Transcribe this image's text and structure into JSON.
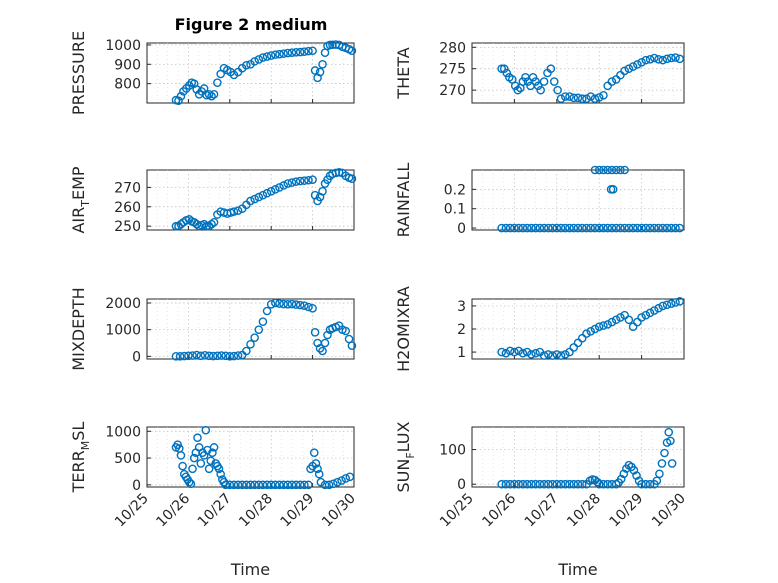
{
  "figure_title": "Figure 2 medium",
  "chart_data": [
    {
      "type": "scatter",
      "ylabel": "PRESSURE",
      "xlabel": "",
      "ylim": [
        700,
        1010
      ],
      "yticks": [
        800,
        900,
        1000
      ],
      "xlim": [
        0,
        5
      ],
      "xticks": [
        0,
        1,
        2,
        3,
        4,
        5
      ],
      "xticklabels": [
        "10/25",
        "10/26",
        "10/27",
        "10/28",
        "10/29",
        "10/30"
      ],
      "show_xticklabels": false,
      "grid": true,
      "series": [
        {
          "color": "#0072BD",
          "x": [
            0.7,
            0.76,
            0.82,
            0.88,
            0.95,
            1.02,
            1.08,
            1.14,
            1.2,
            1.26,
            1.32,
            1.38,
            1.44,
            1.5,
            1.56,
            1.62,
            1.7,
            1.78,
            1.86,
            1.94,
            2.02,
            2.1,
            2.2,
            2.3,
            2.4,
            2.5,
            2.6,
            2.7,
            2.8,
            2.9,
            3.0,
            3.1,
            3.2,
            3.3,
            3.4,
            3.5,
            3.6,
            3.7,
            3.8,
            3.9,
            4.0,
            4.06,
            4.12,
            4.18,
            4.24,
            4.3,
            4.36,
            4.42,
            4.48,
            4.56,
            4.64,
            4.72,
            4.8,
            4.88,
            4.95
          ],
          "y": [
            715,
            712,
            735,
            760,
            775,
            790,
            805,
            800,
            770,
            745,
            760,
            775,
            740,
            745,
            735,
            745,
            805,
            850,
            880,
            870,
            860,
            845,
            860,
            880,
            895,
            900,
            915,
            925,
            935,
            940,
            945,
            950,
            952,
            955,
            958,
            960,
            962,
            963,
            965,
            968,
            970,
            868,
            830,
            860,
            900,
            960,
            995,
            1000,
            1001,
            1002,
            1000,
            990,
            985,
            978,
            970
          ]
        }
      ]
    },
    {
      "type": "scatter",
      "ylabel": "THETA",
      "xlabel": "",
      "ylim": [
        267,
        281
      ],
      "yticks": [
        270,
        275,
        280
      ],
      "xlim": [
        0,
        5
      ],
      "xticks": [
        0,
        1,
        2,
        3,
        4,
        5
      ],
      "xticklabels": [
        "10/25",
        "10/26",
        "10/27",
        "10/28",
        "10/29",
        "10/30"
      ],
      "show_xticklabels": false,
      "grid": true,
      "series": [
        {
          "color": "#0072BD",
          "x": [
            0.7,
            0.76,
            0.82,
            0.88,
            0.95,
            1.02,
            1.08,
            1.14,
            1.2,
            1.26,
            1.32,
            1.38,
            1.44,
            1.5,
            1.56,
            1.62,
            1.7,
            1.78,
            1.86,
            1.94,
            2.02,
            2.1,
            2.2,
            2.3,
            2.4,
            2.5,
            2.6,
            2.7,
            2.8,
            2.9,
            3.0,
            3.1,
            3.2,
            3.3,
            3.4,
            3.5,
            3.6,
            3.7,
            3.8,
            3.9,
            4.0,
            4.1,
            4.2,
            4.3,
            4.4,
            4.5,
            4.6,
            4.7,
            4.8,
            4.9
          ],
          "y": [
            275,
            275,
            274,
            273,
            272.5,
            271,
            270,
            270.5,
            272,
            273,
            272,
            271,
            273,
            272,
            271,
            270,
            272,
            274,
            275,
            272,
            270,
            268,
            268.5,
            268.5,
            268.2,
            268.2,
            268,
            268,
            268.5,
            268,
            268.3,
            268.8,
            271,
            272,
            272.5,
            273.5,
            274.5,
            275,
            275.5,
            276,
            276.5,
            277,
            277.2,
            277.5,
            277.2,
            277,
            277.3,
            277.5,
            277.6,
            277.3
          ]
        }
      ]
    },
    {
      "type": "scatter",
      "ylabel": "AIR_TEMP",
      "xlabel": "",
      "ylim": [
        248,
        279
      ],
      "yticks": [
        250,
        260,
        270
      ],
      "xlim": [
        0,
        5
      ],
      "xticks": [
        0,
        1,
        2,
        3,
        4,
        5
      ],
      "xticklabels": [
        "10/25",
        "10/26",
        "10/27",
        "10/28",
        "10/29",
        "10/30"
      ],
      "show_xticklabels": false,
      "grid": true,
      "series": [
        {
          "color": "#0072BD",
          "x": [
            0.7,
            0.76,
            0.82,
            0.88,
            0.95,
            1.02,
            1.08,
            1.14,
            1.2,
            1.26,
            1.32,
            1.38,
            1.44,
            1.5,
            1.56,
            1.62,
            1.7,
            1.78,
            1.86,
            1.94,
            2.02,
            2.1,
            2.2,
            2.3,
            2.4,
            2.5,
            2.6,
            2.7,
            2.8,
            2.9,
            3.0,
            3.1,
            3.2,
            3.3,
            3.4,
            3.5,
            3.6,
            3.7,
            3.8,
            3.9,
            4.0,
            4.06,
            4.12,
            4.18,
            4.24,
            4.3,
            4.36,
            4.42,
            4.48,
            4.56,
            4.64,
            4.72,
            4.8,
            4.88,
            4.95
          ],
          "y": [
            250,
            250,
            251,
            252,
            253,
            253.5,
            252.5,
            252,
            251,
            250,
            250.5,
            251,
            250,
            250,
            251,
            252,
            256,
            257.5,
            257,
            256.5,
            257,
            257.5,
            258,
            259,
            261,
            263,
            264,
            265,
            266,
            267,
            268,
            269,
            270,
            271,
            272,
            272.5,
            273,
            273.3,
            273.5,
            273.7,
            274,
            266,
            263,
            265,
            268,
            272,
            274,
            276,
            277,
            277.5,
            277.8,
            277.5,
            276,
            275,
            274.5
          ]
        }
      ]
    },
    {
      "type": "scatter",
      "ylabel": "RAINFALL",
      "xlabel": "",
      "ylim": [
        -0.01,
        0.3
      ],
      "yticks": [
        0,
        0.1,
        0.2
      ],
      "xlim": [
        0,
        5
      ],
      "xticks": [
        0,
        1,
        2,
        3,
        4,
        5
      ],
      "xticklabels": [
        "10/25",
        "10/26",
        "10/27",
        "10/28",
        "10/29",
        "10/30"
      ],
      "show_xticklabels": false,
      "grid": true,
      "series": [
        {
          "color": "#0072BD",
          "x": [
            0.7,
            0.8,
            0.9,
            1.0,
            1.1,
            1.2,
            1.3,
            1.4,
            1.5,
            1.6,
            1.7,
            1.8,
            1.9,
            2.0,
            2.1,
            2.2,
            2.3,
            2.4,
            2.5,
            2.6,
            2.7,
            2.8,
            2.9,
            3.0,
            3.1,
            3.2,
            3.3,
            3.4,
            3.5,
            3.6,
            3.7,
            3.8,
            3.9,
            4.0,
            4.1,
            4.2,
            4.3,
            4.4,
            4.5,
            4.6,
            4.7,
            4.8,
            4.9,
            2.9,
            3.0,
            3.1,
            3.2,
            3.3,
            3.4,
            3.5,
            3.6,
            3.28,
            3.33
          ],
          "y": [
            0,
            0,
            0,
            0,
            0,
            0,
            0,
            0,
            0,
            0,
            0,
            0,
            0,
            0,
            0,
            0,
            0,
            0,
            0,
            0,
            0,
            0,
            0,
            0,
            0,
            0,
            0,
            0,
            0,
            0,
            0,
            0,
            0,
            0,
            0,
            0,
            0,
            0,
            0,
            0,
            0,
            0,
            0,
            0.3,
            0.3,
            0.3,
            0.3,
            0.3,
            0.3,
            0.3,
            0.3,
            0.2,
            0.2
          ]
        }
      ]
    },
    {
      "type": "scatter",
      "ylabel": "MIXDEPTH",
      "xlabel": "",
      "ylim": [
        -100,
        2150
      ],
      "yticks": [
        0,
        1000,
        2000
      ],
      "xlim": [
        0,
        5
      ],
      "xticks": [
        0,
        1,
        2,
        3,
        4,
        5
      ],
      "xticklabels": [
        "10/25",
        "10/26",
        "10/27",
        "10/28",
        "10/29",
        "10/30"
      ],
      "show_xticklabels": false,
      "grid": true,
      "series": [
        {
          "color": "#0072BD",
          "x": [
            0.7,
            0.8,
            0.9,
            1.0,
            1.1,
            1.2,
            1.3,
            1.4,
            1.5,
            1.6,
            1.7,
            1.8,
            1.9,
            2.0,
            2.1,
            2.2,
            2.3,
            2.4,
            2.5,
            2.6,
            2.7,
            2.8,
            2.9,
            3.0,
            3.1,
            3.2,
            3.3,
            3.4,
            3.5,
            3.6,
            3.7,
            3.8,
            3.9,
            4.0,
            4.06,
            4.12,
            4.18,
            4.24,
            4.3,
            4.36,
            4.42,
            4.48,
            4.56,
            4.64,
            4.72,
            4.8,
            4.88,
            4.95
          ],
          "y": [
            0,
            0,
            10,
            20,
            30,
            50,
            20,
            40,
            20,
            10,
            20,
            30,
            20,
            0,
            10,
            30,
            50,
            200,
            450,
            700,
            1000,
            1300,
            1700,
            1950,
            2000,
            1980,
            1960,
            1950,
            1960,
            1940,
            1920,
            1900,
            1850,
            1800,
            900,
            500,
            300,
            200,
            500,
            800,
            1000,
            1050,
            1100,
            1150,
            1000,
            950,
            650,
            400
          ]
        }
      ]
    },
    {
      "type": "scatter",
      "ylabel": "H2OMIXRA",
      "xlabel": "",
      "ylim": [
        0.7,
        3.3
      ],
      "yticks": [
        1,
        2,
        3
      ],
      "xlim": [
        0,
        5
      ],
      "xticks": [
        0,
        1,
        2,
        3,
        4,
        5
      ],
      "xticklabels": [
        "10/25",
        "10/26",
        "10/27",
        "10/28",
        "10/29",
        "10/30"
      ],
      "show_xticklabels": false,
      "grid": true,
      "series": [
        {
          "color": "#0072BD",
          "x": [
            0.7,
            0.8,
            0.9,
            1.0,
            1.1,
            1.2,
            1.3,
            1.4,
            1.5,
            1.6,
            1.7,
            1.8,
            1.9,
            2.0,
            2.1,
            2.2,
            2.3,
            2.4,
            2.5,
            2.6,
            2.7,
            2.8,
            2.9,
            3.0,
            3.1,
            3.2,
            3.3,
            3.4,
            3.5,
            3.6,
            3.7,
            3.8,
            3.9,
            4.0,
            4.1,
            4.2,
            4.3,
            4.4,
            4.5,
            4.6,
            4.7,
            4.8,
            4.9
          ],
          "y": [
            1.0,
            0.95,
            1.05,
            1.0,
            1.05,
            0.95,
            1.0,
            0.9,
            0.95,
            1.0,
            0.85,
            0.9,
            0.85,
            0.9,
            0.85,
            0.9,
            1.0,
            1.2,
            1.4,
            1.6,
            1.8,
            1.9,
            2.0,
            2.1,
            2.15,
            2.2,
            2.3,
            2.4,
            2.5,
            2.6,
            2.4,
            2.1,
            2.3,
            2.5,
            2.6,
            2.7,
            2.8,
            2.9,
            3.0,
            3.05,
            3.1,
            3.15,
            3.2
          ]
        }
      ]
    },
    {
      "type": "scatter",
      "ylabel": "TERR_MSL",
      "xlabel": "Time",
      "ylim": [
        -40,
        1080
      ],
      "yticks": [
        0,
        500,
        1000
      ],
      "xlim": [
        0,
        5
      ],
      "xticks": [
        0,
        1,
        2,
        3,
        4,
        5
      ],
      "xticklabels": [
        "10/25",
        "10/26",
        "10/27",
        "10/28",
        "10/29",
        "10/30"
      ],
      "show_xticklabels": true,
      "grid": true,
      "series": [
        {
          "color": "#0072BD",
          "x": [
            0.7,
            0.74,
            0.78,
            0.82,
            0.86,
            0.9,
            0.94,
            0.98,
            1.02,
            1.06,
            1.1,
            1.14,
            1.18,
            1.22,
            1.26,
            1.3,
            1.34,
            1.38,
            1.42,
            1.46,
            1.5,
            1.54,
            1.58,
            1.62,
            1.66,
            1.7,
            1.74,
            1.78,
            1.82,
            1.86,
            1.9,
            2.0,
            2.1,
            2.2,
            2.3,
            2.4,
            2.5,
            2.6,
            2.7,
            2.8,
            2.9,
            3.0,
            3.1,
            3.2,
            3.3,
            3.4,
            3.5,
            3.6,
            3.7,
            3.8,
            3.9,
            3.95,
            4.0,
            4.04,
            4.08,
            4.12,
            4.16,
            4.2,
            4.3,
            4.4,
            4.5,
            4.6,
            4.7,
            4.8,
            4.9
          ],
          "y": [
            700,
            750,
            680,
            550,
            350,
            200,
            150,
            100,
            50,
            20,
            300,
            500,
            600,
            880,
            700,
            400,
            600,
            550,
            1020,
            650,
            300,
            450,
            600,
            700,
            400,
            350,
            300,
            200,
            100,
            50,
            0,
            0,
            0,
            0,
            0,
            0,
            0,
            0,
            0,
            0,
            0,
            0,
            0,
            0,
            0,
            0,
            0,
            0,
            0,
            0,
            0,
            300,
            350,
            600,
            400,
            300,
            200,
            50,
            0,
            0,
            20,
            50,
            80,
            120,
            150
          ]
        }
      ]
    },
    {
      "type": "scatter",
      "ylabel": "SUN_FLUX",
      "xlabel": "Time",
      "ylim": [
        -8,
        165
      ],
      "yticks": [
        0,
        100
      ],
      "xlim": [
        0,
        5
      ],
      "xticks": [
        0,
        1,
        2,
        3,
        4,
        5
      ],
      "xticklabels": [
        "10/25",
        "10/26",
        "10/27",
        "10/28",
        "10/29",
        "10/30"
      ],
      "show_xticklabels": true,
      "grid": true,
      "series": [
        {
          "color": "#0072BD",
          "x": [
            0.7,
            0.8,
            0.9,
            1.0,
            1.1,
            1.2,
            1.3,
            1.4,
            1.5,
            1.6,
            1.7,
            1.8,
            1.9,
            2.0,
            2.1,
            2.2,
            2.3,
            2.4,
            2.5,
            2.6,
            2.7,
            2.78,
            2.84,
            2.9,
            2.96,
            3.0,
            3.1,
            3.2,
            3.3,
            3.4,
            3.46,
            3.52,
            3.58,
            3.64,
            3.7,
            3.76,
            3.82,
            3.88,
            3.94,
            4.0,
            4.1,
            4.2,
            4.3,
            4.36,
            4.42,
            4.48,
            4.54,
            4.6,
            4.64,
            4.68,
            4.72
          ],
          "y": [
            0,
            0,
            0,
            0,
            0,
            0,
            0,
            0,
            0,
            0,
            0,
            0,
            0,
            0,
            0,
            0,
            0,
            0,
            0,
            0,
            0,
            10,
            14,
            12,
            6,
            0,
            0,
            0,
            0,
            0,
            5,
            15,
            30,
            45,
            55,
            50,
            40,
            25,
            10,
            0,
            0,
            0,
            0,
            10,
            30,
            60,
            90,
            120,
            150,
            125,
            60
          ]
        }
      ]
    }
  ]
}
